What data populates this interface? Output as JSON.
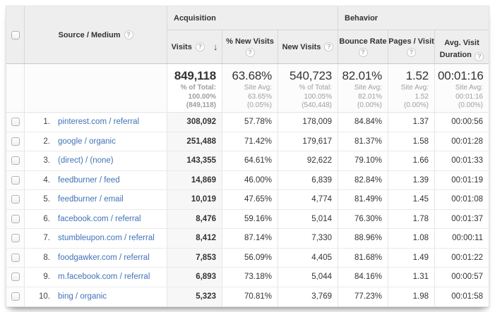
{
  "report": {
    "column_groups": {
      "acquisition": "Acquisition",
      "behavior": "Behavior"
    },
    "columns": {
      "source_medium": "Source / Medium",
      "visits": "Visits",
      "pct_new_visits": "% New Visits",
      "new_visits": "New Visits",
      "bounce_rate": "Bounce Rate",
      "pages_per_visit": "Pages / Visit",
      "avg_visit_duration": "Avg. Visit Duration"
    },
    "icons": {
      "help": "?",
      "sort_desc": "↓"
    },
    "sort": {
      "column": "visits",
      "direction": "descending"
    },
    "summary": {
      "visits": {
        "value": "849,118",
        "sub": "% of Total:\n100.00%\n(849,118)"
      },
      "pct_new_visits": {
        "value": "63.68%",
        "sub": "Site Avg:\n63.65%\n(0.05%)"
      },
      "new_visits": {
        "value": "540,723",
        "sub": "% of Total:\n100.05%\n(540,448)"
      },
      "bounce_rate": {
        "value": "82.01%",
        "sub": "Site Avg:\n82.01%\n(0.00%)"
      },
      "pages_per_visit": {
        "value": "1.52",
        "sub": "Site Avg:\n1.52 (0.00%)"
      },
      "avg_visit_duration": {
        "value": "00:01:16",
        "sub": "Site Avg:\n00:01:16\n(0.00%)"
      }
    },
    "rows": [
      {
        "index": "1.",
        "source": "pinterest.com / referral",
        "visits": "308,092",
        "pct_new_visits": "57.78%",
        "new_visits": "178,009",
        "bounce_rate": "84.84%",
        "pages_per_visit": "1.37",
        "avg_visit_duration": "00:00:56"
      },
      {
        "index": "2.",
        "source": "google / organic",
        "visits": "251,488",
        "pct_new_visits": "71.42%",
        "new_visits": "179,617",
        "bounce_rate": "81.37%",
        "pages_per_visit": "1.58",
        "avg_visit_duration": "00:01:28"
      },
      {
        "index": "3.",
        "source": "(direct) / (none)",
        "visits": "143,355",
        "pct_new_visits": "64.61%",
        "new_visits": "92,622",
        "bounce_rate": "79.10%",
        "pages_per_visit": "1.66",
        "avg_visit_duration": "00:01:33"
      },
      {
        "index": "4.",
        "source": "feedburner / feed",
        "visits": "14,869",
        "pct_new_visits": "46.00%",
        "new_visits": "6,839",
        "bounce_rate": "82.84%",
        "pages_per_visit": "1.39",
        "avg_visit_duration": "00:01:19"
      },
      {
        "index": "5.",
        "source": "feedburner / email",
        "visits": "10,019",
        "pct_new_visits": "47.65%",
        "new_visits": "4,774",
        "bounce_rate": "81.49%",
        "pages_per_visit": "1.45",
        "avg_visit_duration": "00:01:08"
      },
      {
        "index": "6.",
        "source": "facebook.com / referral",
        "visits": "8,476",
        "pct_new_visits": "59.16%",
        "new_visits": "5,014",
        "bounce_rate": "76.30%",
        "pages_per_visit": "1.78",
        "avg_visit_duration": "00:01:37"
      },
      {
        "index": "7.",
        "source": "stumbleupon.com / referral",
        "visits": "8,412",
        "pct_new_visits": "87.14%",
        "new_visits": "7,330",
        "bounce_rate": "88.96%",
        "pages_per_visit": "1.08",
        "avg_visit_duration": "00:00:11"
      },
      {
        "index": "8.",
        "source": "foodgawker.com / referral",
        "visits": "7,853",
        "pct_new_visits": "56.09%",
        "new_visits": "4,405",
        "bounce_rate": "81.68%",
        "pages_per_visit": "1.49",
        "avg_visit_duration": "00:01:22"
      },
      {
        "index": "9.",
        "source": "m.facebook.com / referral",
        "visits": "6,893",
        "pct_new_visits": "73.18%",
        "new_visits": "5,044",
        "bounce_rate": "84.16%",
        "pages_per_visit": "1.31",
        "avg_visit_duration": "00:00:57"
      },
      {
        "index": "10.",
        "source": "bing / organic",
        "visits": "5,323",
        "pct_new_visits": "70.81%",
        "new_visits": "3,769",
        "bounce_rate": "77.23%",
        "pages_per_visit": "1.98",
        "avg_visit_duration": "00:01:58"
      }
    ],
    "colors": {
      "link_blue": "#4272b8",
      "header_bg": "#eeeeee",
      "sorted_column_bg": "#f7f7f7"
    }
  }
}
